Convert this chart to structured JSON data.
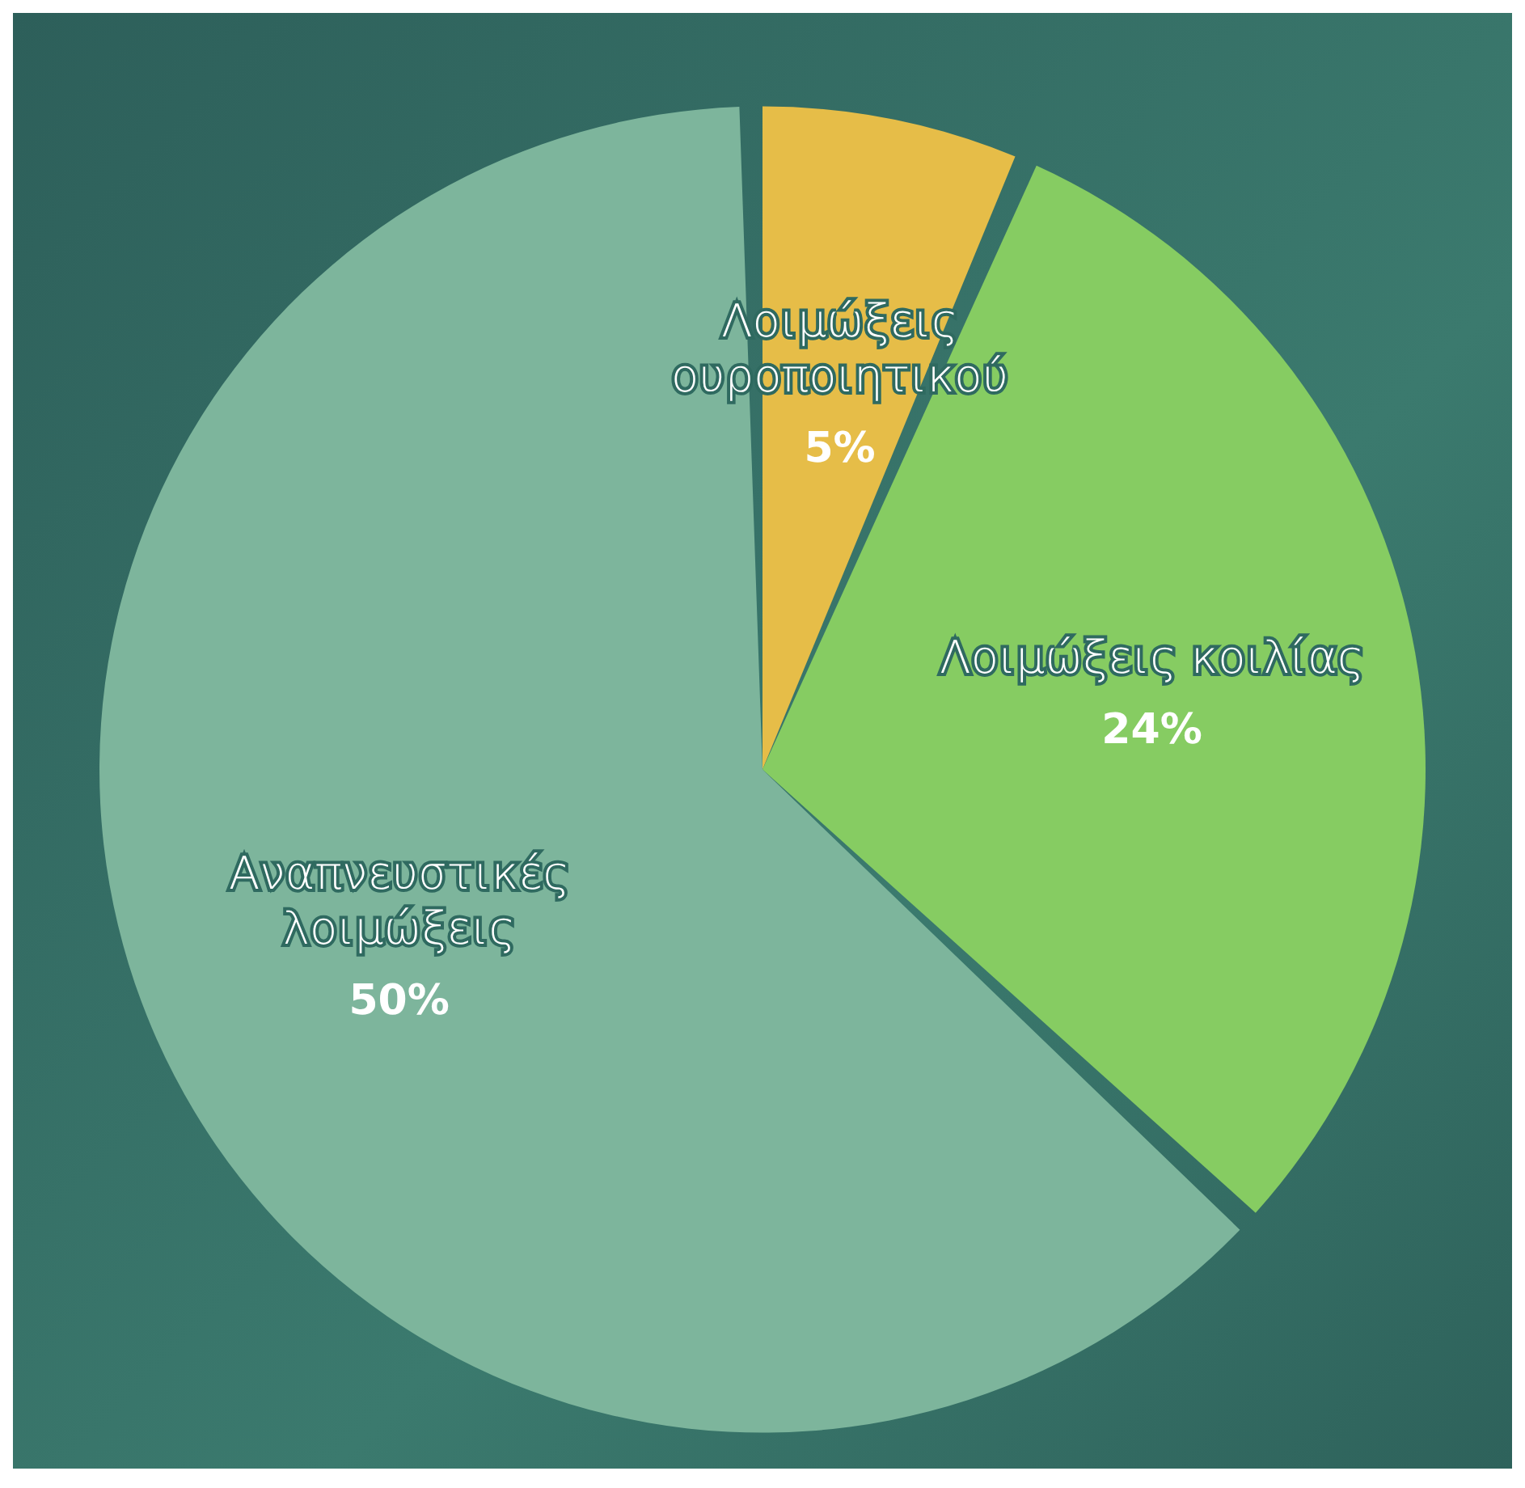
{
  "chart_data": {
    "type": "pie",
    "categories": [
      "Λοιμώξεις ουροποιητικού",
      "Λοιμώξεις κοιλίας",
      "Αναπνευστικές λοιμώξεις"
    ],
    "values": [
      5,
      24,
      50
    ],
    "value_labels": [
      "5%",
      "24%",
      "50%"
    ],
    "colors": [
      "#e6bd48",
      "#86cc62",
      "#7db59c"
    ]
  }
}
